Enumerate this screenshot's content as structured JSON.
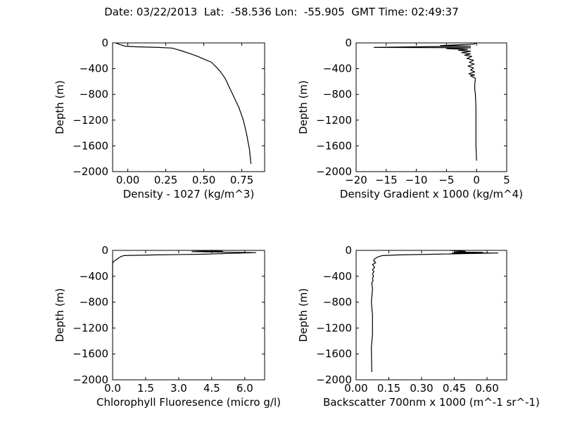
{
  "title": "Date: 03/22/2013  Lat:  -58.536 Lon:  -55.905  GMT Time: 02:49:37",
  "chart_data": [
    {
      "type": "line",
      "xlabel": "Density - 1027 (kg/m^3)",
      "ylabel": "Depth (m)",
      "xlim": [
        -0.1,
        0.9
      ],
      "ylim": [
        -2000,
        0
      ],
      "xticks": [
        0.0,
        0.25,
        0.5,
        0.75
      ],
      "xtick_labels": [
        "0.00",
        "0.25",
        "0.50",
        "0.75"
      ],
      "yticks": [
        0,
        -400,
        -800,
        -1200,
        -1600,
        -2000
      ],
      "ytick_labels": [
        "0",
        "−400",
        "−800",
        "−1200",
        "−1600",
        "−2000"
      ],
      "grid": false,
      "series": [
        {
          "x": [
            -0.08,
            -0.06,
            -0.02,
            0.05,
            0.2,
            0.29,
            0.35,
            0.4,
            0.45,
            0.5,
            0.55,
            0.58,
            0.61,
            0.64,
            0.67,
            0.7,
            0.73,
            0.76,
            0.78,
            0.8,
            0.81
          ],
          "y": [
            0,
            -20,
            -50,
            -60,
            -70,
            -80,
            -120,
            -160,
            -200,
            -250,
            -300,
            -370,
            -450,
            -550,
            -700,
            -850,
            -1000,
            -1200,
            -1400,
            -1650,
            -1880
          ]
        }
      ]
    },
    {
      "type": "line",
      "xlabel": "Density Gradient x 1000 (kg/m^4)",
      "ylabel": "Depth (m)",
      "xlim": [
        -20,
        5
      ],
      "ylim": [
        -2000,
        0
      ],
      "xticks": [
        -20,
        -15,
        -10,
        -5,
        0,
        5
      ],
      "xtick_labels": [
        "−20",
        "−15",
        "−10",
        "−5",
        "0",
        "5"
      ],
      "yticks": [
        0,
        -400,
        -800,
        -1200,
        -1600,
        -2000
      ],
      "ytick_labels": [
        "0",
        "−400",
        "−800",
        "−1200",
        "−1600",
        "−2000"
      ],
      "grid": false,
      "series": [
        {
          "x": [
            0,
            -0.5,
            -6,
            -1,
            -17,
            -1,
            -5,
            -1.5,
            -3,
            -1,
            -2.5,
            -1,
            -2,
            -0.8,
            -1.6,
            -0.5,
            -1.2,
            -0.4,
            -1.4,
            -0.5,
            -1,
            -0.3,
            -1.3,
            -0.3,
            -1,
            -0.2,
            -0.3,
            -0.3,
            -0.2,
            -0.1,
            -0.1,
            -0.1,
            0
          ],
          "y": [
            0,
            -20,
            -40,
            -50,
            -70,
            -75,
            -90,
            -100,
            -115,
            -130,
            -150,
            -170,
            -190,
            -210,
            -240,
            -270,
            -300,
            -330,
            -360,
            -390,
            -420,
            -450,
            -480,
            -500,
            -510,
            -550,
            -650,
            -720,
            -800,
            -1000,
            -1300,
            -1600,
            -1830
          ]
        }
      ]
    },
    {
      "type": "line",
      "xlabel": "Chlorophyll Fluoresence (micro g/l)",
      "ylabel": "Depth (m)",
      "xlim": [
        0,
        6.9
      ],
      "ylim": [
        -2000,
        0
      ],
      "xticks": [
        0.0,
        1.5,
        3.0,
        4.5,
        6.0
      ],
      "xtick_labels": [
        "0.0",
        "1.5",
        "3.0",
        "4.5",
        "6.0"
      ],
      "yticks": [
        0,
        -400,
        -800,
        -1200,
        -1600,
        -2000
      ],
      "ytick_labels": [
        "0",
        "−400",
        "−800",
        "−1200",
        "−1600",
        "−2000"
      ],
      "grid": false,
      "series": [
        {
          "x": [
            3.6,
            5.0,
            3.6,
            6.5,
            4.0,
            2.0,
            0.5,
            0.35,
            0.05,
            0.0,
            0.0,
            0.0,
            0.0
          ],
          "y": [
            0,
            -15,
            -20,
            -35,
            -60,
            -70,
            -80,
            -100,
            -170,
            -200,
            -500,
            -900,
            -1200
          ]
        }
      ]
    },
    {
      "type": "line",
      "xlabel": "Backscatter 700nm x 1000 (m^-1 sr^-1)",
      "ylabel": "Depth (m)",
      "xlim": [
        0,
        0.69
      ],
      "ylim": [
        -2000,
        0
      ],
      "xticks": [
        0.0,
        0.15,
        0.3,
        0.45,
        0.6
      ],
      "xtick_labels": [
        "0.00",
        "0.15",
        "0.30",
        "0.45",
        "0.60"
      ],
      "yticks": [
        0,
        -400,
        -800,
        -1200,
        -1600,
        -2000
      ],
      "ytick_labels": [
        "0",
        "−400",
        "−800",
        "−1200",
        "−1600",
        "−2000"
      ],
      "grid": false,
      "series": [
        {
          "x": [
            0.43,
            0.5,
            0.45,
            0.58,
            0.44,
            0.65,
            0.35,
            0.2,
            0.12,
            0.1,
            0.085,
            0.08,
            0.09,
            0.075,
            0.085,
            0.075,
            0.082,
            0.075,
            0.08,
            0.075,
            0.078,
            0.072,
            0.075,
            0.07,
            0.075,
            0.075,
            0.07,
            0.072
          ],
          "y": [
            0,
            -15,
            -25,
            -30,
            -40,
            -40,
            -60,
            -70,
            -80,
            -100,
            -130,
            -160,
            -190,
            -220,
            -260,
            -300,
            -330,
            -360,
            -400,
            -430,
            -470,
            -500,
            -600,
            -800,
            -1000,
            -1300,
            -1500,
            -1880
          ]
        }
      ]
    }
  ]
}
